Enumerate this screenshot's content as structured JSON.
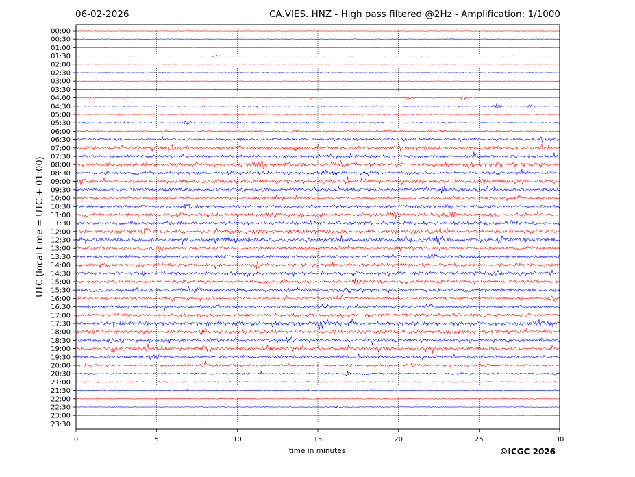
{
  "chart_data": {
    "type": "line",
    "date": "06-02-2026",
    "title": "CA.VIES..HNZ - High pass filtered @2Hz - Amplification: 1/1000",
    "xlabel": "time in minutes",
    "ylabel": "UTC (local time = UTC + 01:00)",
    "xlim": [
      0,
      30
    ],
    "xticks": [
      0,
      5,
      10,
      15,
      20,
      25,
      30
    ],
    "vertical_gridlines": [
      5,
      10,
      15,
      20,
      25
    ],
    "grid_style": "dotted",
    "trace_colors": [
      "#ff0000",
      "#0000ff"
    ],
    "rows": [
      {
        "label": "00:00",
        "activity": 0.08
      },
      {
        "label": "00:30",
        "activity": 0.1
      },
      {
        "label": "01:00",
        "activity": 0.08
      },
      {
        "label": "01:30",
        "activity": 0.1
      },
      {
        "label": "02:00",
        "activity": 0.08
      },
      {
        "label": "02:30",
        "activity": 0.12
      },
      {
        "label": "03:00",
        "activity": 0.08
      },
      {
        "label": "03:30",
        "activity": 0.08
      },
      {
        "label": "04:00",
        "activity": 0.15
      },
      {
        "label": "04:30",
        "activity": 0.18
      },
      {
        "label": "05:00",
        "activity": 0.15
      },
      {
        "label": "05:30",
        "activity": 0.28
      },
      {
        "label": "06:00",
        "activity": 0.3
      },
      {
        "label": "06:30",
        "activity": 0.55
      },
      {
        "label": "07:00",
        "activity": 0.75
      },
      {
        "label": "07:30",
        "activity": 0.6
      },
      {
        "label": "08:00",
        "activity": 0.75
      },
      {
        "label": "08:30",
        "activity": 0.65
      },
      {
        "label": "09:00",
        "activity": 0.75
      },
      {
        "label": "09:30",
        "activity": 0.75
      },
      {
        "label": "10:00",
        "activity": 0.6
      },
      {
        "label": "10:30",
        "activity": 0.65
      },
      {
        "label": "11:00",
        "activity": 0.7
      },
      {
        "label": "11:30",
        "activity": 0.7
      },
      {
        "label": "12:00",
        "activity": 0.8
      },
      {
        "label": "12:30",
        "activity": 0.8
      },
      {
        "label": "13:00",
        "activity": 0.75
      },
      {
        "label": "13:30",
        "activity": 0.6
      },
      {
        "label": "14:00",
        "activity": 0.65
      },
      {
        "label": "14:30",
        "activity": 0.7
      },
      {
        "label": "15:00",
        "activity": 0.65
      },
      {
        "label": "15:30",
        "activity": 0.75
      },
      {
        "label": "16:00",
        "activity": 0.7
      },
      {
        "label": "16:30",
        "activity": 0.6
      },
      {
        "label": "17:00",
        "activity": 0.65
      },
      {
        "label": "17:30",
        "activity": 0.8
      },
      {
        "label": "18:00",
        "activity": 0.8
      },
      {
        "label": "18:30",
        "activity": 0.8
      },
      {
        "label": "19:00",
        "activity": 0.75
      },
      {
        "label": "19:30",
        "activity": 0.6
      },
      {
        "label": "20:00",
        "activity": 0.45
      },
      {
        "label": "20:30",
        "activity": 0.4
      },
      {
        "label": "21:00",
        "activity": 0.25
      },
      {
        "label": "21:30",
        "activity": 0.2
      },
      {
        "label": "22:00",
        "activity": 0.15
      },
      {
        "label": "22:30",
        "activity": 0.15
      },
      {
        "label": "23:00",
        "activity": 0.08
      },
      {
        "label": "23:30",
        "activity": 0.05
      }
    ],
    "events": [
      {
        "row": "00:30",
        "t": 23.3,
        "amp": 0.3
      },
      {
        "row": "01:30",
        "t": 8.7,
        "amp": 0.4
      },
      {
        "row": "04:00",
        "t": 0.9,
        "amp": 0.4
      },
      {
        "row": "04:00",
        "t": 20.7,
        "amp": 0.5
      },
      {
        "row": "04:00",
        "t": 24.0,
        "amp": 1.0
      },
      {
        "row": "04:30",
        "t": 26.1,
        "amp": 1.1
      },
      {
        "row": "04:30",
        "t": 28.2,
        "amp": 0.6
      },
      {
        "row": "05:30",
        "t": 6.9,
        "amp": 1.2
      },
      {
        "row": "06:00",
        "t": 13.5,
        "amp": 1.1
      },
      {
        "row": "06:00",
        "t": 22.7,
        "amp": 0.7
      },
      {
        "row": "06:30",
        "t": 28.9,
        "amp": 0.9
      },
      {
        "row": "07:00",
        "t": 5.8,
        "amp": 1.6
      },
      {
        "row": "07:00",
        "t": 13.7,
        "amp": 1.5
      },
      {
        "row": "07:30",
        "t": 24.8,
        "amp": 1.2
      },
      {
        "row": "08:00",
        "t": 11.6,
        "amp": 1.4
      },
      {
        "row": "08:00",
        "t": 24.4,
        "amp": 1.3
      },
      {
        "row": "08:30",
        "t": 15.5,
        "amp": 0.9
      },
      {
        "row": "09:00",
        "t": 0.3,
        "amp": 1.3
      },
      {
        "row": "09:00",
        "t": 25.3,
        "amp": 1.0
      },
      {
        "row": "09:30",
        "t": 22.7,
        "amp": 1.0
      },
      {
        "row": "10:00",
        "t": 27.4,
        "amp": 1.0
      },
      {
        "row": "10:30",
        "t": 6.9,
        "amp": 1.0
      },
      {
        "row": "11:00",
        "t": 19.8,
        "amp": 1.3
      },
      {
        "row": "11:00",
        "t": 23.3,
        "amp": 1.4
      },
      {
        "row": "12:00",
        "t": 4.3,
        "amp": 1.3
      },
      {
        "row": "12:30",
        "t": 22.5,
        "amp": 1.2
      },
      {
        "row": "12:30",
        "t": 26.3,
        "amp": 1.2
      },
      {
        "row": "13:00",
        "t": 5.3,
        "amp": 1.2
      },
      {
        "row": "13:30",
        "t": 22.1,
        "amp": 1.1
      },
      {
        "row": "14:00",
        "t": 11.2,
        "amp": 1.0
      },
      {
        "row": "14:30",
        "t": 4.3,
        "amp": 1.1
      },
      {
        "row": "14:30",
        "t": 26.1,
        "amp": 1.0
      },
      {
        "row": "15:00",
        "t": 17.3,
        "amp": 1.2
      },
      {
        "row": "15:30",
        "t": 7.5,
        "amp": 1.0
      },
      {
        "row": "16:00",
        "t": 29.5,
        "amp": 0.9
      },
      {
        "row": "16:30",
        "t": 21.9,
        "amp": 1.0
      },
      {
        "row": "17:30",
        "t": 15.2,
        "amp": 1.8
      },
      {
        "row": "17:30",
        "t": 17.1,
        "amp": 1.3
      },
      {
        "row": "18:00",
        "t": 7.9,
        "amp": 1.4
      },
      {
        "row": "18:30",
        "t": 2.2,
        "amp": 1.2
      },
      {
        "row": "19:00",
        "t": 2.3,
        "amp": 1.4
      },
      {
        "row": "19:00",
        "t": 8.0,
        "amp": 1.3
      },
      {
        "row": "19:30",
        "t": 5.1,
        "amp": 1.0
      },
      {
        "row": "20:00",
        "t": 8.0,
        "amp": 2.2
      },
      {
        "row": "20:00",
        "t": 23.0,
        "amp": 0.8
      },
      {
        "row": "20:30",
        "t": 16.8,
        "amp": 0.6
      },
      {
        "row": "22:30",
        "t": 16.3,
        "amp": 0.5
      }
    ]
  },
  "copyright": "©ICGC 2026"
}
